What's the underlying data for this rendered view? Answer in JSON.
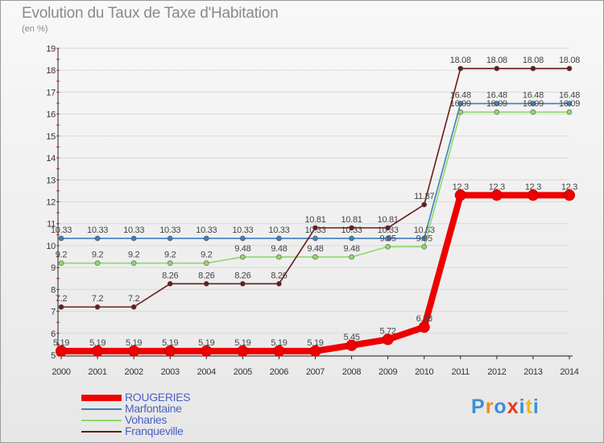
{
  "title": "Evolution du Taux de Taxe d'Habitation",
  "subtitle": "(en %)",
  "logo": {
    "letters": [
      "P",
      "r",
      "o",
      "x",
      "i",
      "t",
      "i"
    ],
    "colors": [
      "#3a8fd9",
      "#f08a1c",
      "#3a8fd9",
      "#e23a2a",
      "#3a8fd9",
      "#f2b81c",
      "#3a8fd9"
    ]
  },
  "chart_data": {
    "type": "line",
    "x": [
      2000,
      2001,
      2002,
      2003,
      2004,
      2005,
      2006,
      2007,
      2008,
      2009,
      2010,
      2011,
      2012,
      2013,
      2014
    ],
    "ylim": [
      5,
      19
    ],
    "yticks": [
      5,
      6,
      7,
      8,
      9,
      10,
      11,
      12,
      13,
      14,
      15,
      16,
      17,
      18,
      19
    ],
    "legend_position": "bottom-left",
    "series": [
      {
        "name": "Marfontaine",
        "color": "#3b7fc0",
        "values": [
          10.33,
          10.33,
          10.33,
          10.33,
          10.33,
          10.33,
          10.33,
          10.33,
          10.33,
          10.33,
          10.33,
          16.48,
          16.48,
          16.48,
          16.48
        ],
        "labels": [
          "10.33",
          "10.33",
          "10.33",
          "10.33",
          "10.33",
          "10.33",
          "10.33",
          "10.33",
          "10.33",
          "10.33",
          "10.33",
          "16.48",
          "16.48",
          "16.48",
          "16.48"
        ]
      },
      {
        "name": "Voharies",
        "color": "#8fd86a",
        "values": [
          9.2,
          9.2,
          9.2,
          9.2,
          9.2,
          9.48,
          9.48,
          9.48,
          9.48,
          9.95,
          9.95,
          16.09,
          16.09,
          16.09,
          16.09
        ],
        "labels": [
          "9.2",
          "9.2",
          "9.2",
          "9.2",
          "9.2",
          "9.48",
          "9.48",
          "9.48",
          "9.48",
          "9.95",
          "9.95",
          "16.09",
          "16.09",
          "16.09",
          "16.09"
        ]
      },
      {
        "name": "Franqueville",
        "color": "#6b1a1a",
        "values": [
          7.2,
          7.2,
          7.2,
          8.26,
          8.26,
          8.26,
          8.26,
          10.81,
          10.81,
          10.81,
          11.87,
          18.08,
          18.08,
          18.08,
          18.08
        ],
        "labels": [
          "7.2",
          "7.2",
          "7.2",
          "8.26",
          "8.26",
          "8.26",
          "8.26",
          "10.81",
          "10.81",
          "10.81",
          "11.87",
          "18.08",
          "18.08",
          "18.08",
          "18.08"
        ]
      },
      {
        "name": "ROUGERIES",
        "color": "#ee0000",
        "values": [
          5.19,
          5.19,
          5.19,
          5.19,
          5.19,
          5.19,
          5.19,
          5.19,
          5.45,
          5.72,
          6.28,
          12.3,
          12.3,
          12.3,
          12.3
        ],
        "labels": [
          "5.19",
          "5.19",
          "5.19",
          "5.19",
          "5.19",
          "5.19",
          "5.19",
          "5.19",
          "5.45",
          "5.72",
          "6.28",
          "12.3",
          "12.3",
          "12.3",
          "12.3"
        ]
      }
    ],
    "legend": [
      "ROUGERIES",
      "Marfontaine",
      "Voharies",
      "Franqueville"
    ]
  }
}
